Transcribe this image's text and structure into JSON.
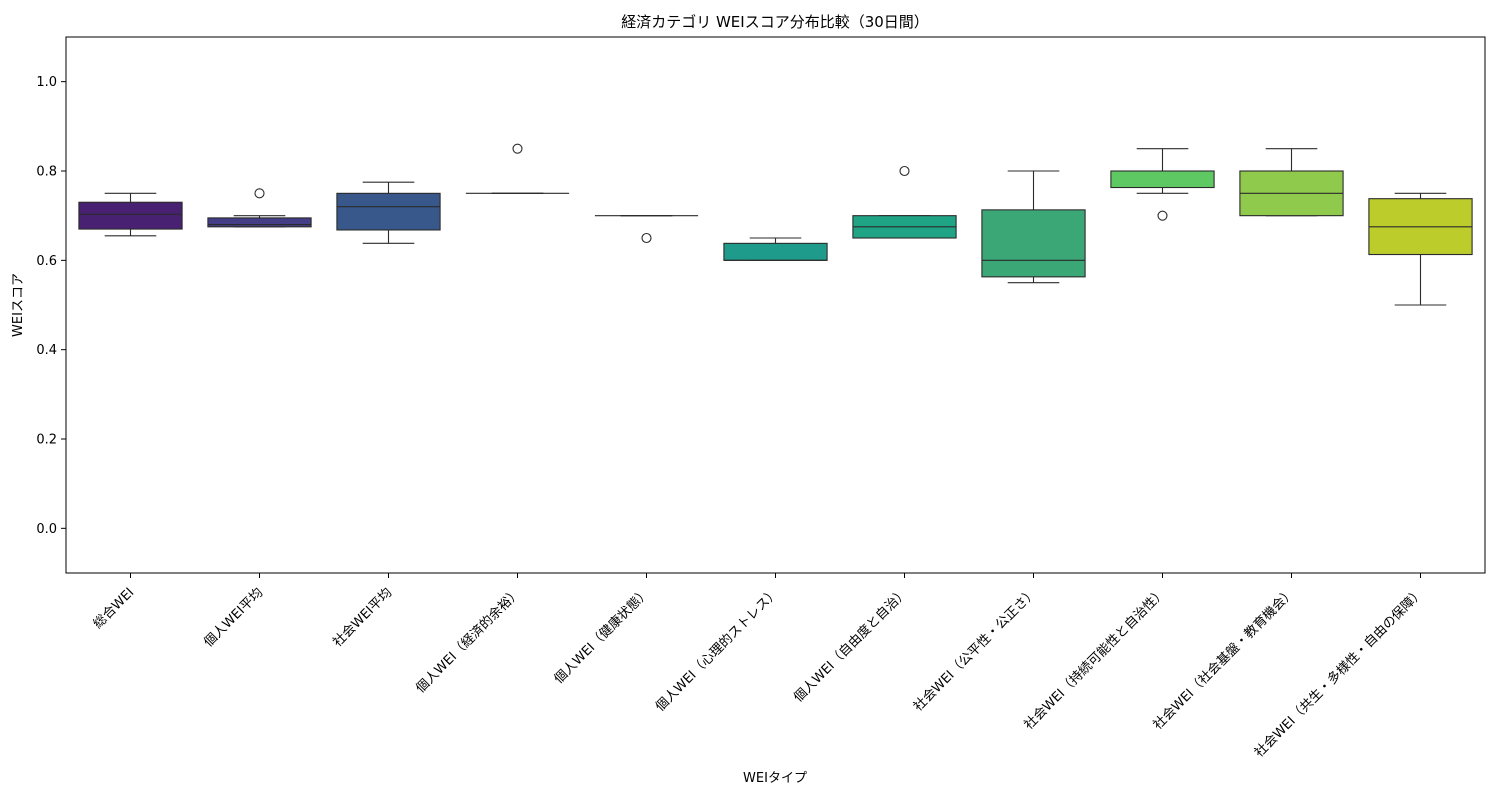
{
  "chart_data": {
    "type": "box",
    "title": "経済カテゴリ WEIスコア分布比較（30日間）",
    "xlabel": "WEIタイプ",
    "ylabel": "WEIスコア",
    "ylim": [
      -0.1,
      1.1
    ],
    "yticks": [
      0.0,
      0.2,
      0.4,
      0.6,
      0.8,
      1.0
    ],
    "ytick_labels": [
      "0.0",
      "0.2",
      "0.4",
      "0.6",
      "0.8",
      "1.0"
    ],
    "grid": false,
    "categories": [
      "総合WEI",
      "個人WEI平均",
      "社会WEI平均",
      "個人WEI（経済的余裕）",
      "個人WEI（健康状態）",
      "個人WEI（心理的ストレス）",
      "個人WEI（自由度と自治）",
      "社会WEI（公平性・公正さ）",
      "社会WEI（持続可能性と自治性）",
      "社会WEI（社会基盤・教育機会）",
      "社会WEI（共生・多様性・自由の保障）"
    ],
    "boxes": [
      {
        "whisker_low": 0.655,
        "q1": 0.67,
        "median": 0.703,
        "q3": 0.73,
        "whisker_high": 0.75,
        "outliers": [],
        "color": "#482173"
      },
      {
        "whisker_low": 0.675,
        "q1": 0.675,
        "median": 0.68,
        "q3": 0.695,
        "whisker_high": 0.7,
        "outliers": [
          0.75
        ],
        "color": "#433e85"
      },
      {
        "whisker_low": 0.638,
        "q1": 0.668,
        "median": 0.72,
        "q3": 0.75,
        "whisker_high": 0.775,
        "outliers": [],
        "color": "#38588c"
      },
      {
        "whisker_low": 0.75,
        "q1": 0.75,
        "median": 0.75,
        "q3": 0.75,
        "whisker_high": 0.75,
        "outliers": [
          0.85
        ],
        "color": "#2d708e"
      },
      {
        "whisker_low": 0.7,
        "q1": 0.7,
        "median": 0.7,
        "q3": 0.7,
        "whisker_high": 0.7,
        "outliers": [
          0.65
        ],
        "color": "#25858e"
      },
      {
        "whisker_low": 0.6,
        "q1": 0.6,
        "median": 0.6,
        "q3": 0.638,
        "whisker_high": 0.65,
        "outliers": [],
        "color": "#1e9b8a"
      },
      {
        "whisker_low": 0.65,
        "q1": 0.65,
        "median": 0.675,
        "q3": 0.7,
        "whisker_high": 0.7,
        "outliers": [
          0.8
        ],
        "color": "#20a486"
      },
      {
        "whisker_low": 0.55,
        "q1": 0.563,
        "median": 0.6,
        "q3": 0.713,
        "whisker_high": 0.8,
        "outliers": [],
        "color": "#3ba776"
      },
      {
        "whisker_low": 0.75,
        "q1": 0.763,
        "median": 0.8,
        "q3": 0.8,
        "whisker_high": 0.85,
        "outliers": [
          0.7
        ],
        "color": "#5ec962"
      },
      {
        "whisker_low": 0.7,
        "q1": 0.7,
        "median": 0.75,
        "q3": 0.8,
        "whisker_high": 0.85,
        "outliers": [],
        "color": "#8fca4d"
      },
      {
        "whisker_low": 0.5,
        "q1": 0.613,
        "median": 0.675,
        "q3": 0.738,
        "whisker_high": 0.75,
        "outliers": [],
        "color": "#bbcc2b"
      }
    ]
  }
}
